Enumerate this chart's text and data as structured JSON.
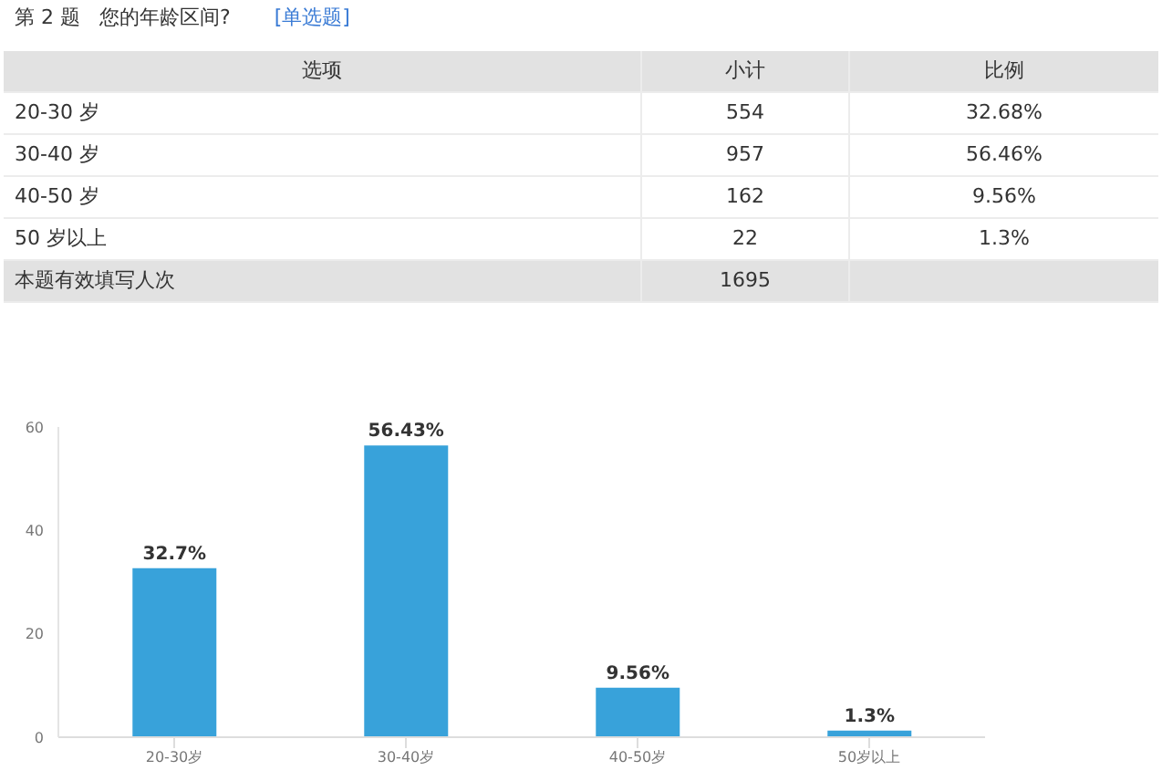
{
  "chart_data": [
    {
      "type": "other",
      "title": "第 2 题   您的年龄区间?",
      "subtitle": "[单选题]",
      "annotations": [
        "选项",
        "小计",
        "比例",
        "20-30 岁",
        "554",
        "32.68%",
        "30-40 岁",
        "957",
        "56.46%",
        "40-50 岁",
        "162",
        "9.56%",
        "50 岁以上",
        "22",
        "1.3%",
        "本题有效填写人次",
        "1695"
      ]
    },
    {
      "type": "bar",
      "categories": [
        "20-30岁",
        "30-40岁",
        "40-50岁",
        "50岁以上"
      ],
      "values": [
        32.7,
        56.43,
        9.56,
        1.3
      ],
      "value_labels": [
        "32.7%",
        "56.43%",
        "9.56%",
        "1.3%"
      ],
      "color": "#38a2da",
      "ylim": [
        0,
        60
      ],
      "yticks": [
        0,
        20,
        40,
        60
      ],
      "grid": false,
      "legend": false
    }
  ]
}
